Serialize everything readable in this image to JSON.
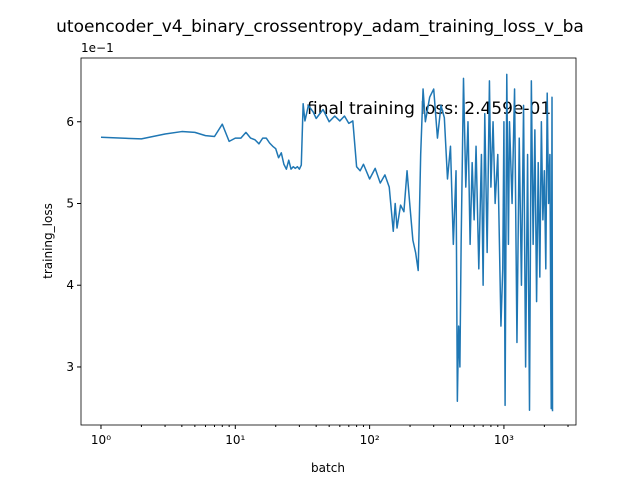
{
  "chart_data": {
    "type": "line",
    "title": "utoencoder_v4_binary_crossentropy_adam_training_loss_v_ba",
    "xlabel": "batch",
    "ylabel": "training_loss",
    "y_offset_label": "1e−1",
    "annotation": "final training loss: 2.459e-01",
    "xscale": "log",
    "color": "#1f77b4",
    "xlim": [
      0.71,
      3440
    ],
    "ylim": [
      0.229,
      0.678
    ],
    "xticks": [
      {
        "value": 1,
        "label": "10⁰"
      },
      {
        "value": 10,
        "label": "10¹"
      },
      {
        "value": 100,
        "label": "10²"
      },
      {
        "value": 1000,
        "label": "10³"
      }
    ],
    "xminorticks": [
      2,
      3,
      4,
      5,
      6,
      7,
      8,
      9,
      20,
      30,
      40,
      50,
      60,
      70,
      80,
      90,
      200,
      300,
      400,
      500,
      600,
      700,
      800,
      900,
      2000,
      3000
    ],
    "yticks": [
      {
        "value": 0.3,
        "label": "3"
      },
      {
        "value": 0.4,
        "label": "4"
      },
      {
        "value": 0.5,
        "label": "5"
      },
      {
        "value": 0.6,
        "label": "6"
      }
    ],
    "x": [
      1,
      2,
      3,
      4,
      5,
      6,
      7,
      8,
      9,
      10,
      11,
      12,
      13,
      14,
      15,
      16,
      17,
      18,
      19,
      20,
      21,
      22,
      23,
      24,
      25,
      26,
      27,
      28,
      29,
      30,
      31,
      32,
      33,
      35,
      38,
      40,
      45,
      50,
      55,
      60,
      65,
      70,
      75,
      78,
      80,
      85,
      90,
      100,
      110,
      120,
      130,
      140,
      150,
      155,
      160,
      170,
      180,
      190,
      200,
      210,
      220,
      230,
      240,
      250,
      260,
      280,
      300,
      320,
      340,
      360,
      380,
      400,
      420,
      440,
      450,
      460,
      470,
      480,
      500,
      520,
      540,
      560,
      580,
      600,
      620,
      650,
      680,
      700,
      720,
      750,
      780,
      800,
      830,
      860,
      900,
      950,
      980,
      1000,
      1020,
      1050,
      1080,
      1100,
      1150,
      1200,
      1250,
      1300,
      1350,
      1400,
      1450,
      1500,
      1550,
      1600,
      1650,
      1700,
      1750,
      1800,
      1850,
      1900,
      1950,
      2000,
      2050,
      2100,
      2150,
      2200,
      2250,
      2280,
      2300
    ],
    "values": [
      0.581,
      0.579,
      0.585,
      0.588,
      0.587,
      0.583,
      0.582,
      0.597,
      0.576,
      0.58,
      0.58,
      0.587,
      0.58,
      0.578,
      0.573,
      0.58,
      0.58,
      0.574,
      0.57,
      0.567,
      0.556,
      0.562,
      0.548,
      0.542,
      0.553,
      0.542,
      0.545,
      0.543,
      0.545,
      0.542,
      0.547,
      0.622,
      0.601,
      0.62,
      0.612,
      0.604,
      0.615,
      0.6,
      0.607,
      0.601,
      0.607,
      0.598,
      0.601,
      0.567,
      0.545,
      0.54,
      0.548,
      0.53,
      0.543,
      0.525,
      0.535,
      0.52,
      0.466,
      0.5,
      0.47,
      0.498,
      0.49,
      0.54,
      0.495,
      0.455,
      0.44,
      0.418,
      0.56,
      0.64,
      0.6,
      0.63,
      0.64,
      0.58,
      0.62,
      0.605,
      0.53,
      0.57,
      0.45,
      0.54,
      0.258,
      0.35,
      0.3,
      0.45,
      0.653,
      0.52,
      0.6,
      0.45,
      0.55,
      0.48,
      0.57,
      0.42,
      0.56,
      0.4,
      0.61,
      0.44,
      0.65,
      0.52,
      0.6,
      0.5,
      0.56,
      0.35,
      0.42,
      0.6,
      0.253,
      0.658,
      0.45,
      0.6,
      0.5,
      0.64,
      0.33,
      0.58,
      0.4,
      0.62,
      0.3,
      0.56,
      0.247,
      0.65,
      0.45,
      0.59,
      0.38,
      0.55,
      0.41,
      0.6,
      0.48,
      0.54,
      0.42,
      0.635,
      0.5,
      0.56,
      0.249,
      0.63,
      0.2459
    ]
  }
}
